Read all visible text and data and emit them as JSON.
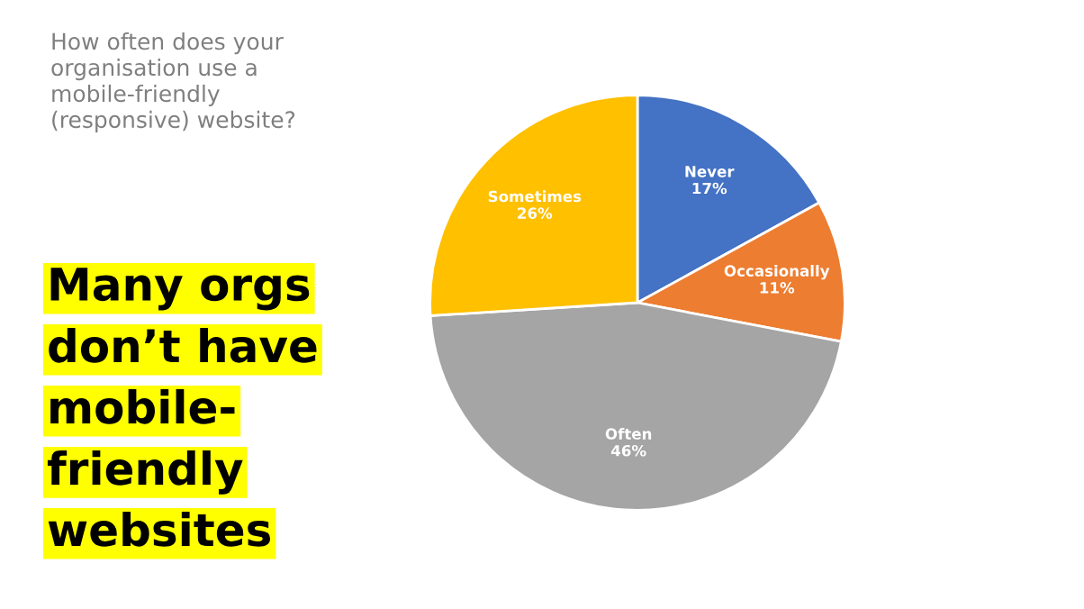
{
  "chart_data": {
    "type": "pie",
    "title": "Many orgs\ndon’t have\nmobile-\nfriendly\nwebsites",
    "subtitle": "How often does your\norganisation use a\nmobile-friendly\n(responsive) website?",
    "categories": [
      "Never",
      "Occasionally",
      "Often",
      "Sometimes"
    ],
    "values": [
      17,
      11,
      46,
      26
    ],
    "value_labels": [
      "17%",
      "11%",
      "46%",
      "26%"
    ],
    "colors": [
      "#4472c4",
      "#ed7d31",
      "#a5a5a5",
      "#ffc000"
    ]
  }
}
